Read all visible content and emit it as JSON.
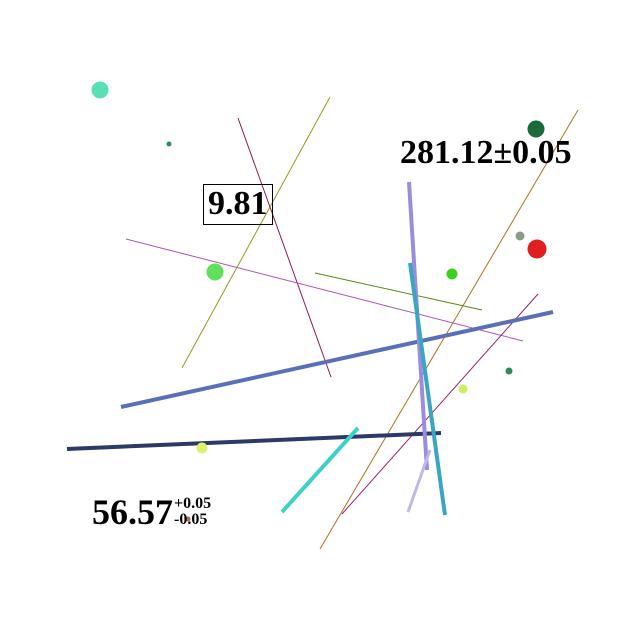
{
  "labels": {
    "top_right": "281.12±0.05",
    "boxed": "9.81",
    "bottom_left_value": "56.57",
    "bottom_left_err_plus": "+0.05",
    "bottom_left_err_minus": "-0.05"
  },
  "colors": {
    "slate_blue": "#5b6fb8",
    "navy": "#2b3a67",
    "lavender": "#9b8cdc",
    "light_lavender": "#c3b6ea",
    "teal": "#3aa6c4",
    "turquoise": "#3ed1cc",
    "olive": "#9a9a1e",
    "maroon": "#8b1a5a",
    "purple": "#b04fc0",
    "green_line": "#5a8a14",
    "brown": "#b07020",
    "aquamarine": "#56e0b4",
    "dark_green": "#1a6b3c",
    "lime": "#5ee05a",
    "bright_green": "#3cd01c",
    "red": "#e02020",
    "gray_green": "#8a9a8a",
    "yellow_green": "#c8f060",
    "sea_green": "#2e8b57"
  }
}
